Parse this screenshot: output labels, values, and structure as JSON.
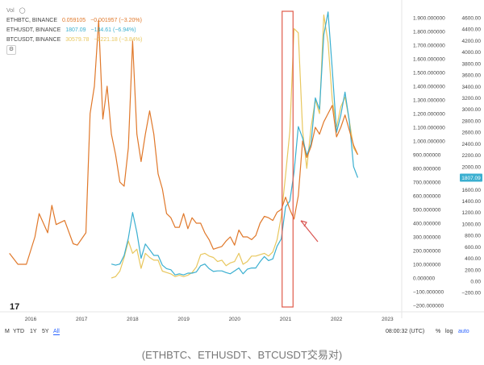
{
  "legend": {
    "vol_label": "Vol",
    "rows": [
      {
        "symbol": "ETHBTC, BINANCE",
        "value": "0.059105",
        "change": "−0.001957 (−3.20%)",
        "color": "#e0782a"
      },
      {
        "symbol": "ETHUSDT, BINANCE",
        "value": "1807.09",
        "change": "−134.61 (−6.94%)",
        "color": "#3aafd0"
      },
      {
        "symbol": "BTCUSDT, BINANCE",
        "value": "30579.78",
        "change": "−1221.18 (−3.84%)",
        "color": "#e8c75e"
      }
    ]
  },
  "axes": {
    "left_ticks": [
      "1.900.000000",
      "1.800.000000",
      "1.700.000000",
      "1.600.000000",
      "1.500.000000",
      "1.400.000000",
      "1.300.000000",
      "1.200.000000",
      "1.100.000000",
      "1.000.000000",
      "900.000000",
      "800.000000",
      "700.000000",
      "600.000000",
      "500.000000",
      "400.000000",
      "300.000000",
      "200.000000",
      "100.000000",
      "0.000000",
      "−100.000000",
      "−200.000000"
    ],
    "right_ticks": [
      "4600.00",
      "4400.00",
      "4200.00",
      "4000.00",
      "3800.00",
      "3600.00",
      "3400.00",
      "3200.00",
      "3000.00",
      "2800.00",
      "2600.00",
      "2400.00",
      "2200.00",
      "2000.00",
      "1800.00",
      "1600.00",
      "1400.00",
      "1200.00",
      "1000.00",
      "800.00",
      "600.00",
      "400.00",
      "200.00",
      "0.00",
      "−200.00"
    ],
    "x_ticks": [
      "2016",
      "2017",
      "2018",
      "2019",
      "2020",
      "2021",
      "2022",
      "2023"
    ],
    "current_price_badge": "1807.09"
  },
  "bottom_bar": {
    "range_buttons": [
      "M",
      "YTD",
      "1Y",
      "5Y",
      "All"
    ],
    "active_range": "All",
    "time": "08:00:32 (UTC)",
    "pct": "%",
    "log": "log",
    "auto": "auto"
  },
  "caption": "(ETHBTC、ETHUSDT、BTCUSDT交易对)",
  "colors": {
    "ethbtc": "#e0782a",
    "ethusdt": "#3aafd0",
    "btcusdt": "#e8c75e",
    "highlight": "#e05a4a",
    "arrow": "#d9534f"
  },
  "chart_data": {
    "type": "line",
    "x_unit": "date",
    "left_axis_range": [
      -200,
      1950
    ],
    "right_axis_range": [
      -200,
      4700
    ],
    "series": [
      {
        "name": "ETHBTC, BINANCE",
        "axis": "left",
        "points": [
          [
            "2015-08",
            180
          ],
          [
            "2015-10",
            100
          ],
          [
            "2015-12",
            100
          ],
          [
            "2016-02",
            300
          ],
          [
            "2016-03",
            470
          ],
          [
            "2016-05",
            330
          ],
          [
            "2016-06",
            530
          ],
          [
            "2016-07",
            390
          ],
          [
            "2016-09",
            420
          ],
          [
            "2016-11",
            250
          ],
          [
            "2016-12",
            240
          ],
          [
            "2017-02",
            330
          ],
          [
            "2017-03",
            1200
          ],
          [
            "2017-04",
            1400
          ],
          [
            "2017-05",
            1880
          ],
          [
            "2017-06",
            1160
          ],
          [
            "2017-07",
            1400
          ],
          [
            "2017-08",
            1050
          ],
          [
            "2017-09",
            900
          ],
          [
            "2017-10",
            700
          ],
          [
            "2017-11",
            670
          ],
          [
            "2017-12",
            950
          ],
          [
            "2018-01",
            1730
          ],
          [
            "2018-02",
            1050
          ],
          [
            "2018-03",
            850
          ],
          [
            "2018-04",
            1050
          ],
          [
            "2018-05",
            1220
          ],
          [
            "2018-06",
            1050
          ],
          [
            "2018-07",
            760
          ],
          [
            "2018-08",
            650
          ],
          [
            "2018-09",
            470
          ],
          [
            "2018-10",
            440
          ],
          [
            "2018-11",
            370
          ],
          [
            "2018-12",
            370
          ],
          [
            "2019-01",
            470
          ],
          [
            "2019-02",
            360
          ],
          [
            "2019-03",
            440
          ],
          [
            "2019-04",
            400
          ],
          [
            "2019-05",
            400
          ],
          [
            "2019-06",
            330
          ],
          [
            "2019-07",
            280
          ],
          [
            "2019-08",
            210
          ],
          [
            "2019-09",
            220
          ],
          [
            "2019-10",
            230
          ],
          [
            "2019-11",
            270
          ],
          [
            "2019-12",
            300
          ],
          [
            "2020-01",
            240
          ],
          [
            "2020-02",
            350
          ],
          [
            "2020-03",
            300
          ],
          [
            "2020-04",
            300
          ],
          [
            "2020-05",
            280
          ],
          [
            "2020-06",
            310
          ],
          [
            "2020-07",
            400
          ],
          [
            "2020-08",
            450
          ],
          [
            "2020-09",
            440
          ],
          [
            "2020-10",
            420
          ],
          [
            "2020-11",
            480
          ],
          [
            "2020-12",
            500
          ],
          [
            "2021-01",
            590
          ],
          [
            "2021-02",
            500
          ],
          [
            "2021-03",
            430
          ],
          [
            "2021-04",
            600
          ],
          [
            "2021-05",
            1000
          ],
          [
            "2021-06",
            880
          ],
          [
            "2021-07",
            960
          ],
          [
            "2021-08",
            1100
          ],
          [
            "2021-09",
            1050
          ],
          [
            "2021-10",
            1140
          ],
          [
            "2021-11",
            1200
          ],
          [
            "2021-12",
            1260
          ],
          [
            "2022-01",
            1030
          ],
          [
            "2022-02",
            1100
          ],
          [
            "2022-03",
            1190
          ],
          [
            "2022-04",
            1080
          ],
          [
            "2022-05",
            970
          ],
          [
            "2022-06",
            900
          ]
        ]
      },
      {
        "name": "ETHUSDT, BINANCE",
        "axis": "right",
        "points": [
          [
            "2017-08",
            300
          ],
          [
            "2017-09",
            280
          ],
          [
            "2017-10",
            300
          ],
          [
            "2017-11",
            450
          ],
          [
            "2017-12",
            750
          ],
          [
            "2018-01",
            1200
          ],
          [
            "2018-02",
            850
          ],
          [
            "2018-03",
            400
          ],
          [
            "2018-04",
            650
          ],
          [
            "2018-05",
            550
          ],
          [
            "2018-06",
            450
          ],
          [
            "2018-07",
            450
          ],
          [
            "2018-08",
            280
          ],
          [
            "2018-09",
            220
          ],
          [
            "2018-10",
            200
          ],
          [
            "2018-11",
            110
          ],
          [
            "2018-12",
            130
          ],
          [
            "2019-01",
            110
          ],
          [
            "2019-02",
            140
          ],
          [
            "2019-03",
            140
          ],
          [
            "2019-04",
            160
          ],
          [
            "2019-05",
            270
          ],
          [
            "2019-06",
            300
          ],
          [
            "2019-07",
            220
          ],
          [
            "2019-08",
            170
          ],
          [
            "2019-09",
            180
          ],
          [
            "2019-10",
            180
          ],
          [
            "2019-11",
            150
          ],
          [
            "2019-12",
            130
          ],
          [
            "2020-01",
            180
          ],
          [
            "2020-02",
            230
          ],
          [
            "2020-03",
            130
          ],
          [
            "2020-04",
            210
          ],
          [
            "2020-05",
            230
          ],
          [
            "2020-06",
            230
          ],
          [
            "2020-07",
            340
          ],
          [
            "2020-08",
            430
          ],
          [
            "2020-09",
            360
          ],
          [
            "2020-10",
            390
          ],
          [
            "2020-11",
            610
          ],
          [
            "2020-12",
            740
          ],
          [
            "2021-01",
            1300
          ],
          [
            "2021-02",
            1400
          ],
          [
            "2021-03",
            1900
          ],
          [
            "2021-04",
            2700
          ],
          [
            "2021-05",
            2500
          ],
          [
            "2021-06",
            2200
          ],
          [
            "2021-07",
            2400
          ],
          [
            "2021-08",
            3200
          ],
          [
            "2021-09",
            3000
          ],
          [
            "2021-10",
            4300
          ],
          [
            "2021-11",
            4700
          ],
          [
            "2021-12",
            3700
          ],
          [
            "2022-01",
            2600
          ],
          [
            "2022-02",
            2900
          ],
          [
            "2022-03",
            3300
          ],
          [
            "2022-04",
            2800
          ],
          [
            "2022-05",
            2000
          ],
          [
            "2022-06",
            1807
          ]
        ]
      },
      {
        "name": "BTCUSDT, BINANCE",
        "axis": "left",
        "points": [
          [
            "2017-08",
            0
          ],
          [
            "2017-09",
            10
          ],
          [
            "2017-10",
            50
          ],
          [
            "2017-11",
            150
          ],
          [
            "2017-12",
            270
          ],
          [
            "2018-01",
            180
          ],
          [
            "2018-02",
            210
          ],
          [
            "2018-03",
            70
          ],
          [
            "2018-04",
            180
          ],
          [
            "2018-05",
            150
          ],
          [
            "2018-06",
            130
          ],
          [
            "2018-07",
            130
          ],
          [
            "2018-08",
            50
          ],
          [
            "2018-09",
            40
          ],
          [
            "2018-10",
            30
          ],
          [
            "2018-11",
            10
          ],
          [
            "2018-12",
            20
          ],
          [
            "2019-01",
            10
          ],
          [
            "2019-02",
            20
          ],
          [
            "2019-03",
            40
          ],
          [
            "2019-04",
            80
          ],
          [
            "2019-05",
            170
          ],
          [
            "2019-06",
            180
          ],
          [
            "2019-07",
            160
          ],
          [
            "2019-08",
            150
          ],
          [
            "2019-09",
            120
          ],
          [
            "2019-10",
            130
          ],
          [
            "2019-11",
            90
          ],
          [
            "2019-12",
            110
          ],
          [
            "2020-01",
            120
          ],
          [
            "2020-02",
            180
          ],
          [
            "2020-03",
            100
          ],
          [
            "2020-04",
            120
          ],
          [
            "2020-05",
            160
          ],
          [
            "2020-06",
            160
          ],
          [
            "2020-07",
            170
          ],
          [
            "2020-08",
            180
          ],
          [
            "2020-09",
            160
          ],
          [
            "2020-10",
            190
          ],
          [
            "2020-11",
            280
          ],
          [
            "2020-12",
            450
          ],
          [
            "2021-01",
            750
          ],
          [
            "2021-02",
            1070
          ],
          [
            "2021-03",
            1820
          ],
          [
            "2021-04",
            1790
          ],
          [
            "2021-05",
            1080
          ],
          [
            "2021-06",
            800
          ],
          [
            "2021-07",
            1100
          ],
          [
            "2021-08",
            1300
          ],
          [
            "2021-09",
            1200
          ],
          [
            "2021-10",
            1920
          ],
          [
            "2021-11",
            1720
          ],
          [
            "2021-12",
            1300
          ],
          [
            "2022-01",
            1100
          ],
          [
            "2022-02",
            1250
          ],
          [
            "2022-03",
            1320
          ],
          [
            "2022-04",
            1150
          ],
          [
            "2022-05",
            950
          ],
          [
            "2022-06",
            900
          ]
        ]
      }
    ],
    "annotations": [
      "highlight box around early 2021",
      "red arrow pointing to 2021 crossover"
    ]
  }
}
